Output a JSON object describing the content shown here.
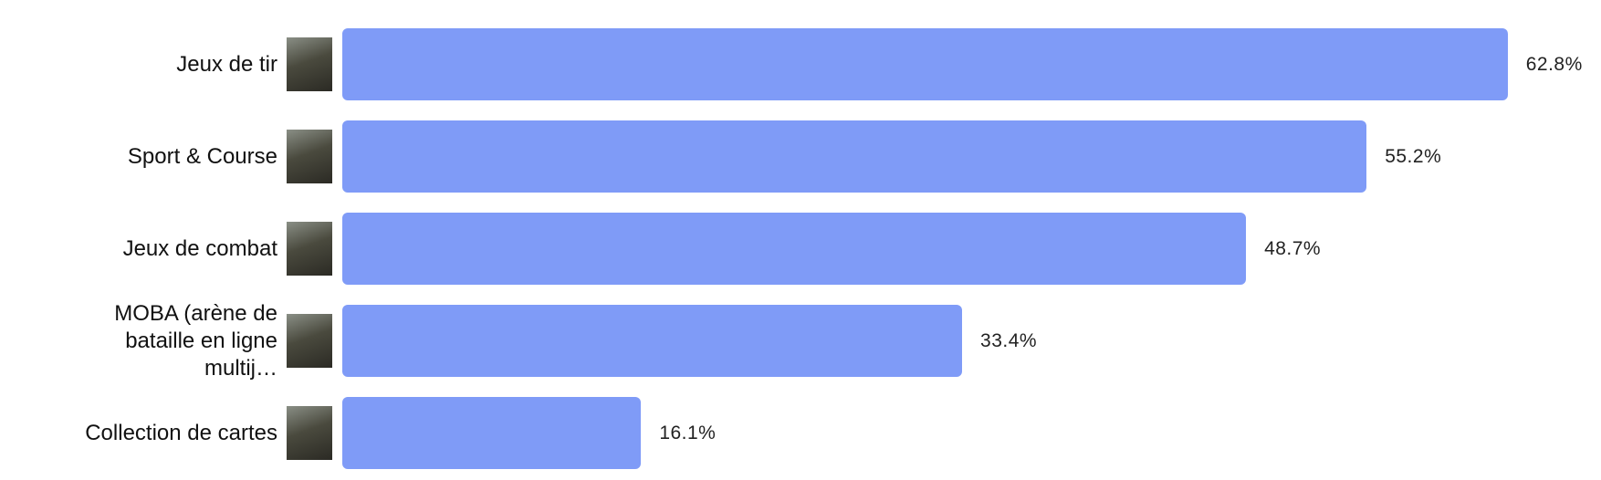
{
  "chart_data": {
    "type": "bar",
    "orientation": "horizontal",
    "categories": [
      "Jeux de tir",
      "Sport & Course",
      "Jeux de combat",
      "MOBA (arène de\nbataille en ligne\nmultij…",
      "Collection de cartes"
    ],
    "values": [
      62.8,
      55.2,
      48.7,
      33.4,
      16.1
    ],
    "value_labels": [
      "62.8%",
      "55.2%",
      "48.7%",
      "33.4%",
      "16.1%"
    ],
    "color": "#7f9bf7"
  }
}
